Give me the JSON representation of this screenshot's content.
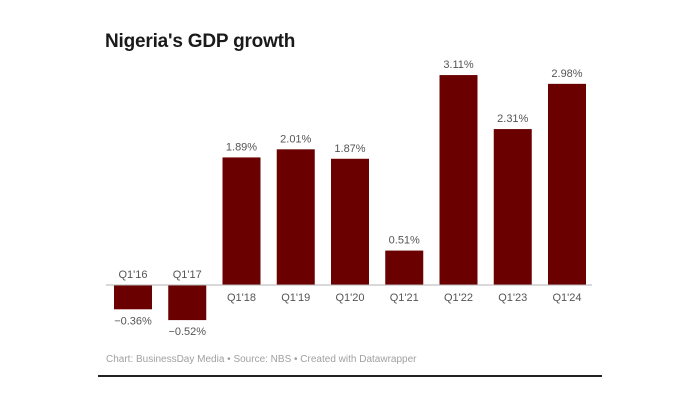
{
  "chart_data": {
    "type": "bar",
    "title": "Nigeria's GDP growth",
    "categories": [
      "Q1'16",
      "Q1'17",
      "Q1'18",
      "Q1'19",
      "Q1'20",
      "Q1'21",
      "Q1'22",
      "Q1'23",
      "Q1'24"
    ],
    "values": [
      -0.36,
      -0.52,
      1.89,
      2.01,
      1.87,
      0.51,
      3.11,
      2.31,
      2.98
    ],
    "value_labels": [
      "−0.36%",
      "−0.52%",
      "1.89%",
      "2.01%",
      "1.87%",
      "0.51%",
      "3.11%",
      "2.31%",
      "2.98%"
    ],
    "xlabel": "",
    "ylabel": "",
    "ylim": [
      -0.6,
      3.2
    ],
    "grid": false,
    "legend": "none",
    "bar_color": "#6b0000",
    "footer": "Chart: BusinessDay Media • Source: NBS • Created with Datawrapper"
  }
}
